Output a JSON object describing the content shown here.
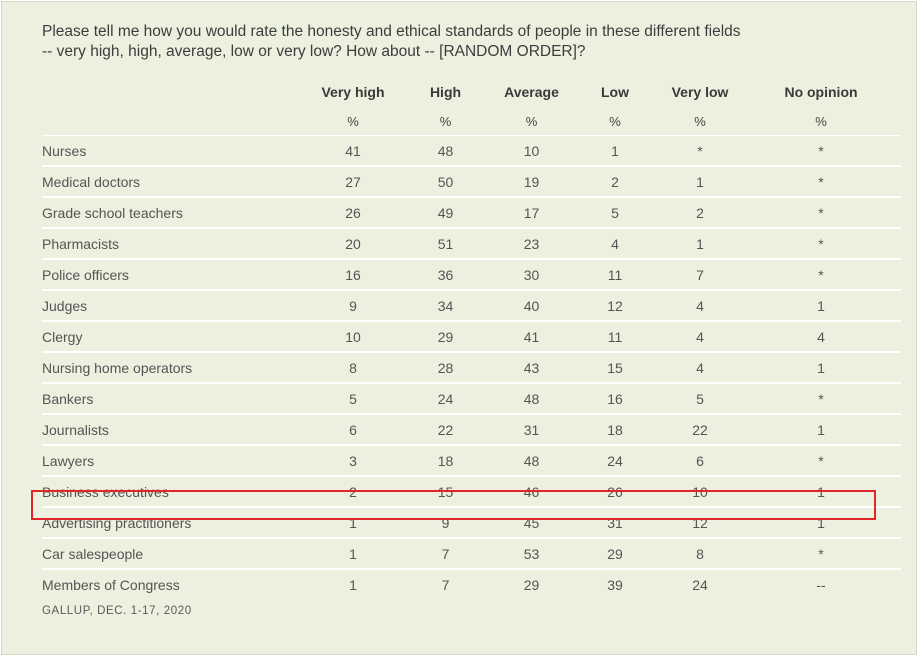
{
  "question": "Please tell me how you would rate the honesty and ethical standards of people in these different fields -- very high, high, average, low or very low? How about -- [RANDOM ORDER]?",
  "columns": [
    "Very high",
    "High",
    "Average",
    "Low",
    "Very low",
    "No opinion"
  ],
  "units": [
    "%",
    "%",
    "%",
    "%",
    "%",
    "%"
  ],
  "rows": [
    {
      "label": "Nurses",
      "values": [
        "41",
        "48",
        "10",
        "1",
        "*",
        "*"
      ]
    },
    {
      "label": "Medical doctors",
      "values": [
        "27",
        "50",
        "19",
        "2",
        "1",
        "*"
      ]
    },
    {
      "label": "Grade school teachers",
      "values": [
        "26",
        "49",
        "17",
        "5",
        "2",
        "*"
      ]
    },
    {
      "label": "Pharmacists",
      "values": [
        "20",
        "51",
        "23",
        "4",
        "1",
        "*"
      ]
    },
    {
      "label": "Police officers",
      "values": [
        "16",
        "36",
        "30",
        "11",
        "7",
        "*"
      ]
    },
    {
      "label": "Judges",
      "values": [
        "9",
        "34",
        "40",
        "12",
        "4",
        "1"
      ]
    },
    {
      "label": "Clergy",
      "values": [
        "10",
        "29",
        "41",
        "11",
        "4",
        "4"
      ]
    },
    {
      "label": "Nursing home operators",
      "values": [
        "8",
        "28",
        "43",
        "15",
        "4",
        "1"
      ]
    },
    {
      "label": "Bankers",
      "values": [
        "5",
        "24",
        "48",
        "16",
        "5",
        "*"
      ]
    },
    {
      "label": "Journalists",
      "values": [
        "6",
        "22",
        "31",
        "18",
        "22",
        "1"
      ]
    },
    {
      "label": "Lawyers",
      "values": [
        "3",
        "18",
        "48",
        "24",
        "6",
        "*"
      ]
    },
    {
      "label": "Business executives",
      "values": [
        "2",
        "15",
        "46",
        "26",
        "10",
        "1"
      ]
    },
    {
      "label": "Advertising practitioners",
      "values": [
        "1",
        "9",
        "45",
        "31",
        "12",
        "1"
      ]
    },
    {
      "label": "Car salespeople",
      "values": [
        "1",
        "7",
        "53",
        "29",
        "8",
        "*"
      ]
    },
    {
      "label": "Members of Congress",
      "values": [
        "1",
        "7",
        "29",
        "39",
        "24",
        "--"
      ]
    }
  ],
  "highlighted_row": "Advertising practitioners",
  "source": "GALLUP, DEC. 1-17, 2020",
  "colors": {
    "background": "#ebf1de",
    "highlight_border": "#e0262a",
    "row_divider": "#ffffff"
  }
}
